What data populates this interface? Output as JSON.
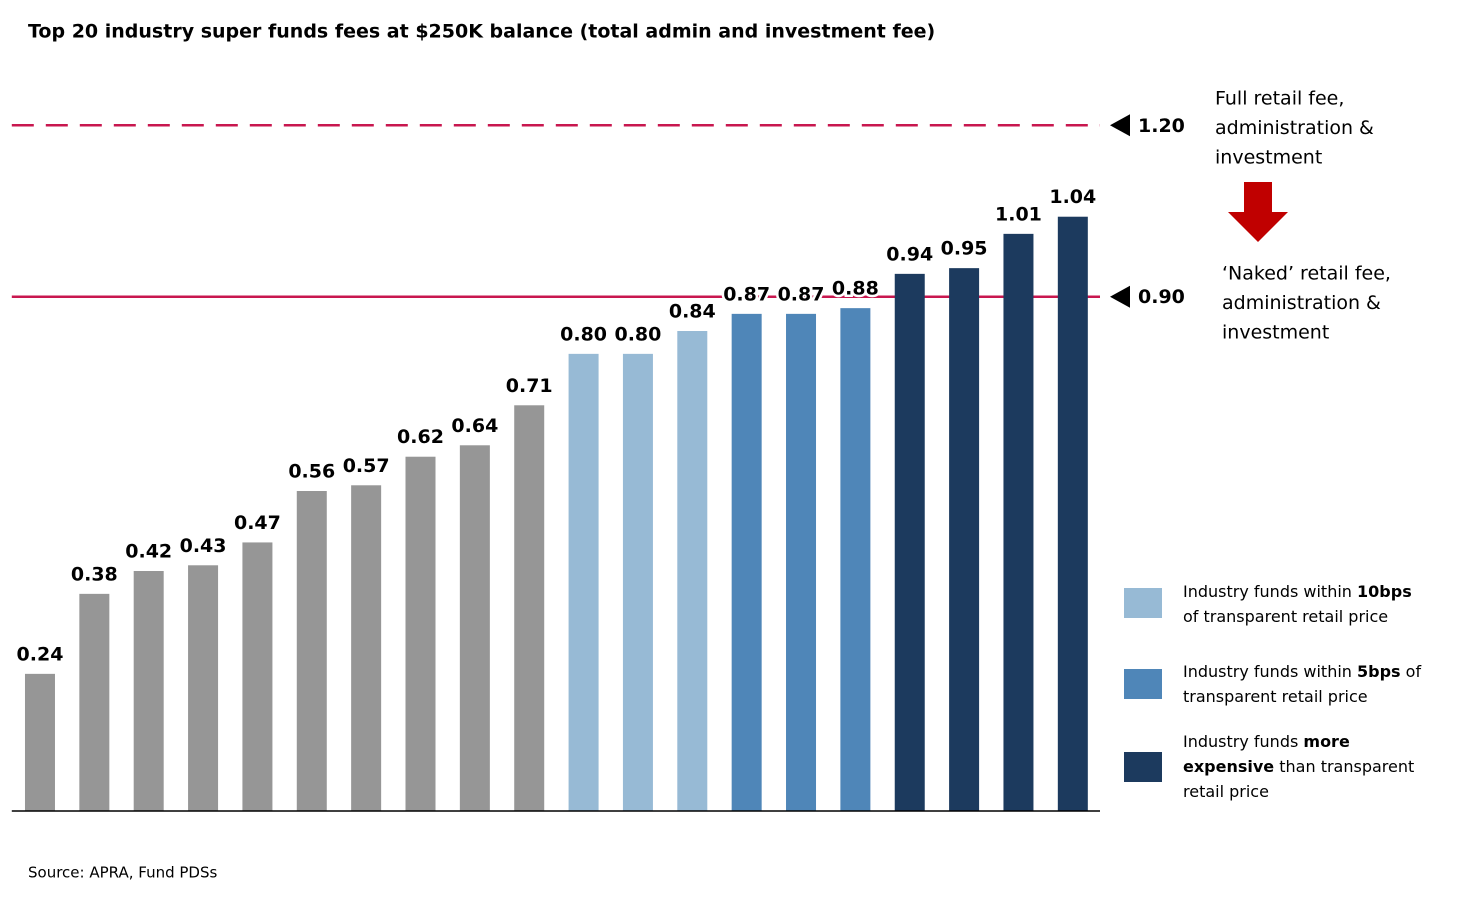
{
  "chart_data": {
    "type": "bar",
    "title": "Top 20 industry super funds fees at $250K balance (total admin and investment fee)",
    "values": [
      0.24,
      0.38,
      0.42,
      0.43,
      0.47,
      0.56,
      0.57,
      0.62,
      0.64,
      0.71,
      0.8,
      0.8,
      0.84,
      0.87,
      0.87,
      0.88,
      0.94,
      0.95,
      1.01,
      1.04
    ],
    "value_labels": [
      "0.24",
      "0.38",
      "0.42",
      "0.43",
      "0.47",
      "0.56",
      "0.57",
      "0.62",
      "0.64",
      "0.71",
      "0.80",
      "0.80",
      "0.84",
      "0.87",
      "0.87",
      "0.88",
      "0.94",
      "0.95",
      "1.01",
      "1.04"
    ],
    "colors": [
      "#969696",
      "#969696",
      "#969696",
      "#969696",
      "#969696",
      "#969696",
      "#969696",
      "#969696",
      "#969696",
      "#969696",
      "#97bad5",
      "#97bad5",
      "#97bad5",
      "#4f86b8",
      "#4f86b8",
      "#4f86b8",
      "#1c3a5e",
      "#1c3a5e",
      "#1c3a5e",
      "#1c3a5e"
    ],
    "ylim": [
      0,
      1.4
    ],
    "reference_lines": [
      {
        "value": 1.2,
        "label": "1.20",
        "style": "dashed",
        "color": "#c8174f",
        "annotation": [
          "Full retail fee,",
          "administration &",
          "investment"
        ]
      },
      {
        "value": 0.9,
        "label": "0.90",
        "style": "solid",
        "color": "#c8174f",
        "annotation": [
          "‘Naked’ retail fee,",
          "administration &",
          "investment"
        ]
      }
    ],
    "legend": [
      {
        "color": "#97bad5",
        "lines": [
          [
            {
              "text": "Industry funds within "
            },
            {
              "text": "10bps",
              "bold": true
            }
          ],
          [
            {
              "text": "of transparent retail price"
            }
          ]
        ]
      },
      {
        "color": "#4f86b8",
        "lines": [
          [
            {
              "text": "Industry funds within "
            },
            {
              "text": "5bps",
              "bold": true
            },
            {
              "text": " of"
            }
          ],
          [
            {
              "text": "transparent retail price"
            }
          ]
        ]
      },
      {
        "color": "#1c3a5e",
        "lines": [
          [
            {
              "text": "Industry funds "
            },
            {
              "text": "more",
              "bold": true
            }
          ],
          [
            {
              "text": "expensive",
              "bold": true
            },
            {
              "text": " than transparent"
            }
          ],
          [
            {
              "text": "retail price"
            }
          ]
        ]
      }
    ],
    "source": "Source: APRA, Fund PDSs"
  }
}
